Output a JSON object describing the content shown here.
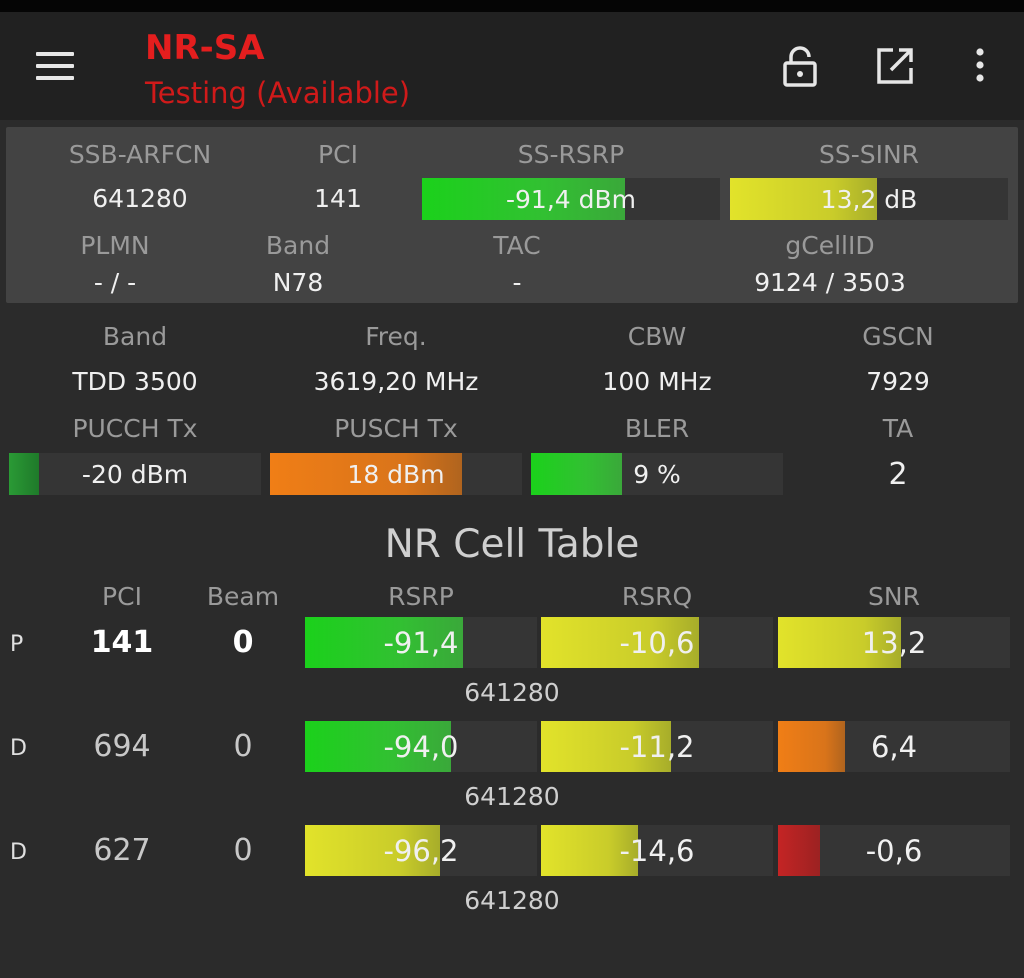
{
  "header": {
    "title": "NR-SA",
    "subtitle": "Testing (Available)",
    "icons": [
      "menu-icon",
      "lock-open-icon",
      "open-external-icon",
      "more-vert-icon"
    ]
  },
  "serving": {
    "labels": {
      "ssb_arfcn": "SSB-ARFCN",
      "pci": "PCI",
      "ss_rsrp": "SS-RSRP",
      "ss_sinr": "SS-SINR",
      "plmn": "PLMN",
      "band": "Band",
      "tac": "TAC",
      "gcellid": "gCellID"
    },
    "values": {
      "ssb_arfcn": "641280",
      "pci": "141",
      "ss_rsrp": "-91,4 dBm",
      "ss_sinr": "13,2 dB",
      "plmn": "- / -",
      "band": "N78",
      "tac": "-",
      "gcellid": "9124 / 3503"
    },
    "levels": {
      "ss_rsrp": 0.68,
      "ss_sinr": 0.53
    }
  },
  "radio": {
    "labels": {
      "band": "Band",
      "freq": "Freq.",
      "cbw": "CBW",
      "gscn": "GSCN",
      "pucch": "PUCCH Tx",
      "pusch": "PUSCH Tx",
      "bler": "BLER",
      "ta": "TA"
    },
    "values": {
      "band": "TDD 3500",
      "freq": "3619,20 MHz",
      "cbw": "100 MHz",
      "gscn": "7929",
      "pucch": "-20 dBm",
      "pusch": "18 dBm",
      "bler": "9 %",
      "ta": "2"
    },
    "levels": {
      "pucch": 0.12,
      "pusch": 0.76,
      "bler": 0.36
    }
  },
  "cell_table": {
    "title": "NR Cell Table",
    "headers": {
      "pci": "PCI",
      "beam": "Beam",
      "rsrp": "RSRP",
      "rsrq": "RSRQ",
      "snr": "SNR"
    },
    "rows": [
      {
        "tag": "P",
        "pci": "141",
        "beam": "0",
        "rsrp": "-91,4",
        "rsrq": "-10,6",
        "snr": "13,2",
        "arfcn": "641280",
        "levels": {
          "rsrp": 0.68,
          "rsrq": 0.68,
          "snr": 0.53
        },
        "colors": {
          "rsrp": "green",
          "rsrq": "yellow",
          "snr": "yellow"
        }
      },
      {
        "tag": "D",
        "pci": "694",
        "beam": "0",
        "rsrp": "-94,0",
        "rsrq": "-11,2",
        "snr": "6,4",
        "arfcn": "641280",
        "levels": {
          "rsrp": 0.63,
          "rsrq": 0.56,
          "snr": 0.29
        },
        "colors": {
          "rsrp": "green",
          "rsrq": "yellow",
          "snr": "orange"
        }
      },
      {
        "tag": "D",
        "pci": "627",
        "beam": "0",
        "rsrp": "-96,2",
        "rsrq": "-14,6",
        "snr": "-0,6",
        "arfcn": "641280",
        "levels": {
          "rsrp": 0.58,
          "rsrq": 0.42,
          "snr": 0.18
        },
        "colors": {
          "rsrp": "yellow",
          "rsrq": "yellow",
          "snr": "red"
        }
      }
    ]
  }
}
